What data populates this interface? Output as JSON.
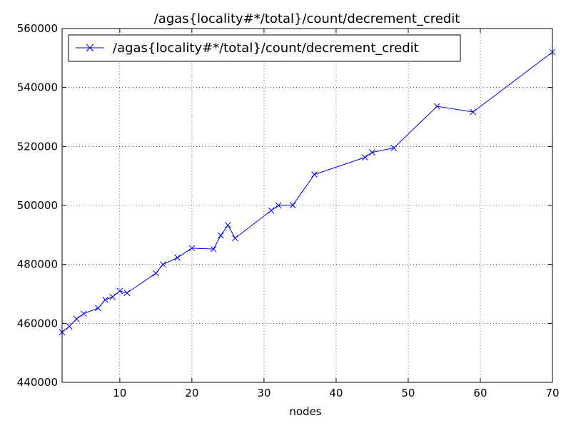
{
  "chart_data": {
    "type": "line",
    "title": "/agas{locality#*/total}/count/decrement_credit",
    "xlabel": "nodes",
    "ylabel": "",
    "xlim": [
      2,
      70
    ],
    "ylim": [
      440000,
      560000
    ],
    "xticks": [
      10,
      20,
      30,
      40,
      50,
      60,
      70
    ],
    "yticks": [
      440000,
      460000,
      480000,
      500000,
      520000,
      540000,
      560000
    ],
    "grid": true,
    "legend_position": "top-left",
    "series": [
      {
        "name": "/agas{locality#*/total}/count/decrement_credit",
        "color": "#0000ff",
        "marker": "x",
        "x": [
          2,
          3,
          4,
          5,
          7,
          8,
          9,
          10,
          11,
          15,
          16,
          18,
          20,
          23,
          24,
          25,
          26,
          31,
          32,
          34,
          37,
          44,
          45,
          48,
          54,
          59,
          70
        ],
        "y": [
          457000,
          459000,
          461500,
          463300,
          465200,
          468000,
          469000,
          471000,
          470300,
          477000,
          480000,
          482300,
          485500,
          485200,
          489800,
          493300,
          488900,
          498300,
          500000,
          500100,
          510500,
          516300,
          518000,
          519500,
          533600,
          531700,
          552000
        ]
      }
    ]
  }
}
